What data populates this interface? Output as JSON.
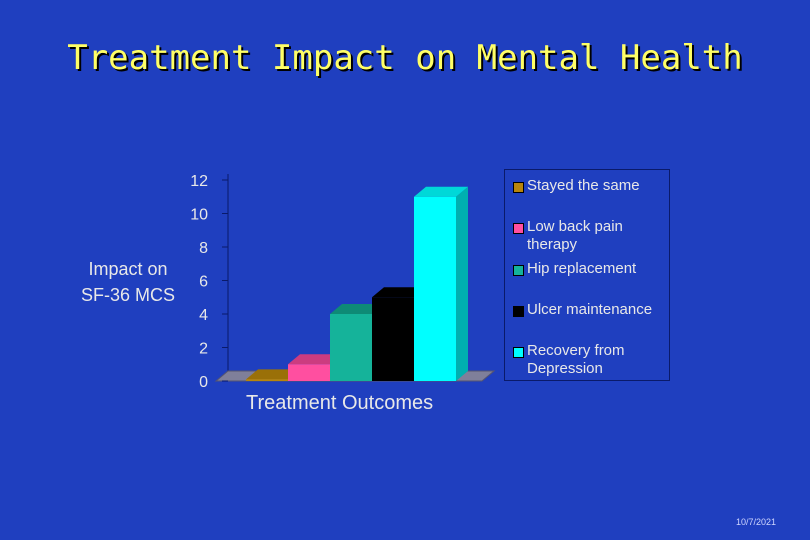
{
  "slide": {
    "title": "Treatment Impact on Mental Health",
    "footer_date": "10/7/2021"
  },
  "chart_data": {
    "type": "bar",
    "title": "",
    "ylabel_lines": [
      "Impact on",
      "SF-36 MCS"
    ],
    "xlabel": "Treatment Outcomes",
    "ylim": [
      0,
      12
    ],
    "yticks": [
      "0",
      "2",
      "4",
      "6",
      "8",
      "10",
      "12"
    ],
    "grid": false,
    "legend_position": "right",
    "three_d": true,
    "series": [
      {
        "name": "Stayed the same",
        "value": 0.1,
        "color": "#b8860b",
        "top_color": "#9a7008",
        "side_color": "#7a5a06"
      },
      {
        "name": "Low back pain therapy",
        "value": 1,
        "color": "#ff4fa0",
        "top_color": "#cc3c80",
        "side_color": "#b03070"
      },
      {
        "name": "Hip replacement",
        "value": 4,
        "color": "#15b39a",
        "top_color": "#0e8a76",
        "side_color": "#0b6e5e"
      },
      {
        "name": "Ulcer maintenance",
        "value": 5,
        "color": "#000000",
        "top_color": "#000000",
        "side_color": "#111111"
      },
      {
        "name": "Recovery from Depression",
        "value": 11,
        "color": "#00ffff",
        "top_color": "#00d8d8",
        "side_color": "#00b0b0"
      }
    ]
  }
}
